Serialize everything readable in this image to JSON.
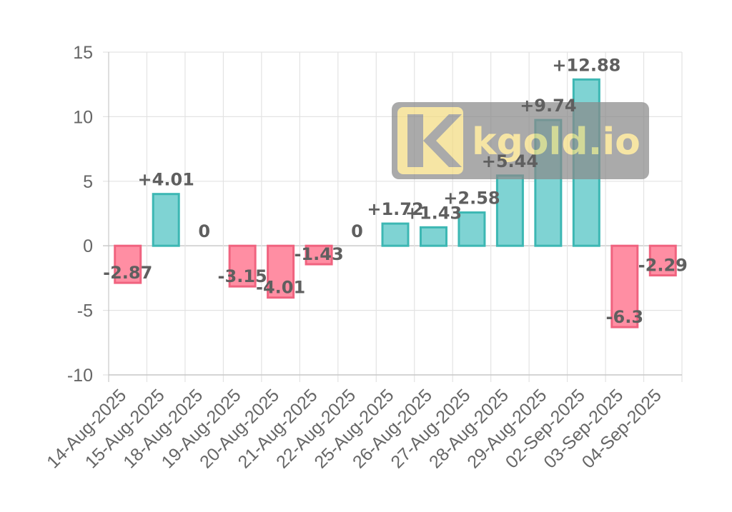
{
  "chart_data": {
    "type": "bar",
    "categories": [
      "14-Aug-2025",
      "15-Aug-2025",
      "18-Aug-2025",
      "19-Aug-2025",
      "20-Aug-2025",
      "21-Aug-2025",
      "22-Aug-2025",
      "25-Aug-2025",
      "26-Aug-2025",
      "27-Aug-2025",
      "28-Aug-2025",
      "29-Aug-2025",
      "02-Sep-2025",
      "03-Sep-2025",
      "04-Sep-2025"
    ],
    "values": [
      -2.87,
      4.01,
      0,
      -3.15,
      -4.01,
      -1.43,
      0,
      1.72,
      1.43,
      2.58,
      5.44,
      9.74,
      12.88,
      -6.3,
      -2.29
    ],
    "data_labels": [
      "-2.87",
      "+4.01",
      "0",
      "-3.15",
      "-4.01",
      "-1.43",
      "0",
      "+1.72",
      "+1.43",
      "+2.58",
      "+5.44",
      "+9.74",
      "+12.88",
      "-6.3",
      "-2.29"
    ],
    "title": "",
    "xlabel": "",
    "ylabel": "",
    "ylim": [
      -10,
      15
    ],
    "yticks": [
      "15",
      "10",
      "5",
      "0",
      "-5",
      "-10"
    ],
    "grid": true,
    "colors": {
      "positive_fill": "#7fd3d3",
      "positive_stroke": "#3cb7b3",
      "negative_fill": "#ff8ea3",
      "negative_stroke": "#f0637f",
      "grid": "#e3e3e3",
      "axis": "#c8c8c8"
    }
  },
  "watermark": {
    "logo_letter": "K",
    "text": "kgold.io",
    "background": "#8a8a8a",
    "color": "#f3dc82"
  }
}
